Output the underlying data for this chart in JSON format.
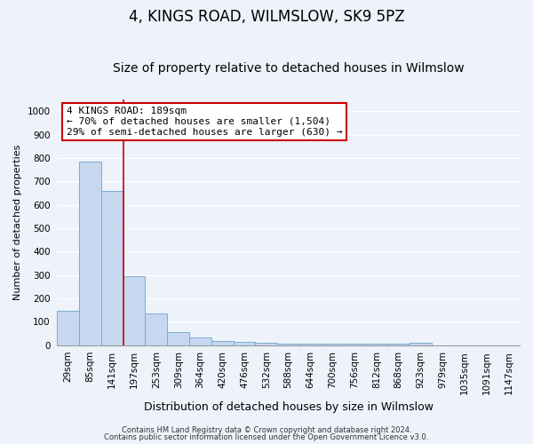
{
  "title1": "4, KINGS ROAD, WILMSLOW, SK9 5PZ",
  "title2": "Size of property relative to detached houses in Wilmslow",
  "xlabel": "Distribution of detached houses by size in Wilmslow",
  "ylabel": "Number of detached properties",
  "categories": [
    "29sqm",
    "85sqm",
    "141sqm",
    "197sqm",
    "253sqm",
    "309sqm",
    "364sqm",
    "420sqm",
    "476sqm",
    "532sqm",
    "588sqm",
    "644sqm",
    "700sqm",
    "756sqm",
    "812sqm",
    "868sqm",
    "923sqm",
    "979sqm",
    "1035sqm",
    "1091sqm",
    "1147sqm"
  ],
  "values": [
    145,
    785,
    660,
    295,
    135,
    57,
    32,
    18,
    15,
    12,
    5,
    5,
    5,
    5,
    5,
    5,
    10,
    0,
    0,
    0,
    0
  ],
  "bar_color": "#c5d8ef",
  "bar_edge_color": "#7aadd4",
  "vline_color": "#cc0000",
  "vline_x": 2.5,
  "annotation_text": "4 KINGS ROAD: 189sqm\n← 70% of detached houses are smaller (1,504)\n29% of semi-detached houses are larger (630) →",
  "annotation_box_facecolor": "#ffffff",
  "annotation_box_edgecolor": "#cc0000",
  "footer1": "Contains HM Land Registry data © Crown copyright and database right 2024.",
  "footer2": "Contains public sector information licensed under the Open Government Licence v3.0.",
  "ylim": [
    0,
    1050
  ],
  "yticks": [
    0,
    100,
    200,
    300,
    400,
    500,
    600,
    700,
    800,
    900,
    1000
  ],
  "background_color": "#eef2fa",
  "plot_background": "#eef2fa",
  "grid_color": "#ffffff",
  "title1_fontsize": 12,
  "title2_fontsize": 10,
  "ylabel_fontsize": 8,
  "xlabel_fontsize": 9,
  "tick_fontsize": 7.5,
  "ann_fontsize": 8
}
